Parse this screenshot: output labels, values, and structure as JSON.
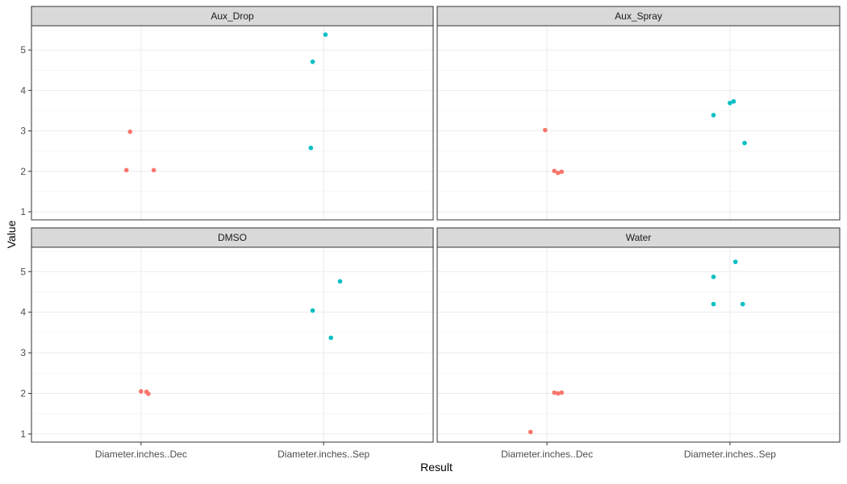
{
  "chart_data": {
    "type": "scatter",
    "xlabel": "Result",
    "ylabel": "Value",
    "categories": [
      "Diameter.inches..Dec",
      "Diameter.inches..Sep"
    ],
    "ylim": [
      0.8,
      5.6
    ],
    "yticks": [
      1,
      2,
      3,
      4,
      5
    ],
    "grid": true,
    "legend": "none",
    "colors": {
      "Diameter.inches..Dec": "#F8766D",
      "Diameter.inches..Sep": "#00BFC4"
    },
    "panels": [
      {
        "title": "Aux_Drop",
        "points": [
          {
            "category": "Diameter.inches..Dec",
            "jitter": -0.08,
            "y": 2.03
          },
          {
            "category": "Diameter.inches..Dec",
            "jitter": -0.06,
            "y": 2.98
          },
          {
            "category": "Diameter.inches..Dec",
            "jitter": 0.07,
            "y": 2.03
          },
          {
            "category": "Diameter.inches..Sep",
            "jitter": -0.07,
            "y": 2.58
          },
          {
            "category": "Diameter.inches..Sep",
            "jitter": -0.06,
            "y": 4.71
          },
          {
            "category": "Diameter.inches..Sep",
            "jitter": 0.01,
            "y": 5.38
          }
        ]
      },
      {
        "title": "Aux_Spray",
        "points": [
          {
            "category": "Diameter.inches..Dec",
            "jitter": -0.01,
            "y": 3.02
          },
          {
            "category": "Diameter.inches..Dec",
            "jitter": 0.04,
            "y": 2.01
          },
          {
            "category": "Diameter.inches..Dec",
            "jitter": 0.06,
            "y": 1.96
          },
          {
            "category": "Diameter.inches..Dec",
            "jitter": 0.08,
            "y": 1.99
          },
          {
            "category": "Diameter.inches..Sep",
            "jitter": -0.09,
            "y": 3.39
          },
          {
            "category": "Diameter.inches..Sep",
            "jitter": 0.0,
            "y": 3.69
          },
          {
            "category": "Diameter.inches..Sep",
            "jitter": 0.02,
            "y": 3.73
          },
          {
            "category": "Diameter.inches..Sep",
            "jitter": 0.08,
            "y": 2.7
          }
        ]
      },
      {
        "title": "DMSO",
        "points": [
          {
            "category": "Diameter.inches..Dec",
            "jitter": 0.0,
            "y": 2.05
          },
          {
            "category": "Diameter.inches..Dec",
            "jitter": 0.03,
            "y": 2.04
          },
          {
            "category": "Diameter.inches..Dec",
            "jitter": 0.04,
            "y": 1.99
          },
          {
            "category": "Diameter.inches..Sep",
            "jitter": -0.06,
            "y": 4.04
          },
          {
            "category": "Diameter.inches..Sep",
            "jitter": 0.04,
            "y": 3.37
          },
          {
            "category": "Diameter.inches..Sep",
            "jitter": 0.09,
            "y": 4.76
          }
        ]
      },
      {
        "title": "Water",
        "points": [
          {
            "category": "Diameter.inches..Dec",
            "jitter": -0.09,
            "y": 1.05
          },
          {
            "category": "Diameter.inches..Dec",
            "jitter": 0.04,
            "y": 2.02
          },
          {
            "category": "Diameter.inches..Dec",
            "jitter": 0.06,
            "y": 2.0
          },
          {
            "category": "Diameter.inches..Dec",
            "jitter": 0.08,
            "y": 2.02
          },
          {
            "category": "Diameter.inches..Sep",
            "jitter": -0.09,
            "y": 4.2
          },
          {
            "category": "Diameter.inches..Sep",
            "jitter": -0.09,
            "y": 4.87
          },
          {
            "category": "Diameter.inches..Sep",
            "jitter": 0.03,
            "y": 5.24
          },
          {
            "category": "Diameter.inches..Sep",
            "jitter": 0.07,
            "y": 4.2
          }
        ]
      }
    ]
  }
}
